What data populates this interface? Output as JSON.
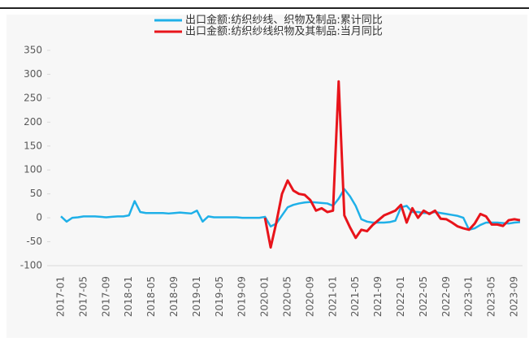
{
  "chart_data": {
    "type": "line",
    "categories": [
      "2017-01",
      null,
      null,
      null,
      "2017-05",
      null,
      null,
      null,
      "2017-09",
      null,
      null,
      null,
      "2018-01",
      null,
      null,
      null,
      "2018-05",
      null,
      null,
      null,
      "2018-09",
      null,
      null,
      null,
      "2019-01",
      null,
      null,
      null,
      "2019-05",
      null,
      null,
      null,
      "2019-09",
      null,
      null,
      null,
      "2020-01",
      null,
      null,
      null,
      "2020-05",
      null,
      null,
      null,
      "2020-09",
      null,
      null,
      null,
      "2021-01",
      null,
      null,
      null,
      "2021-05",
      null,
      null,
      null,
      "2021-09",
      null,
      null,
      null,
      "2022-01",
      null,
      null,
      null,
      "2022-05",
      null,
      null,
      null,
      "2022-09",
      null,
      null,
      null,
      "2023-01",
      null,
      null,
      null,
      "2023-05",
      null,
      null,
      null,
      "2023-09",
      null
    ],
    "series": [
      {
        "name": "出口金额:纺织纱线、织物及制品:累计同比",
        "color": "#1fb0e8",
        "values": [
          3,
          -8,
          0,
          1,
          3,
          3,
          3,
          2,
          1,
          2,
          3,
          3,
          5,
          35,
          12,
          10,
          10,
          10,
          10,
          9,
          10,
          11,
          10,
          9,
          15,
          -8,
          3,
          1,
          1,
          1,
          1,
          1,
          0,
          0,
          0,
          0,
          2,
          -18,
          -12,
          5,
          22,
          27,
          30,
          32,
          33,
          32,
          31,
          30,
          25,
          40,
          60,
          45,
          25,
          -3,
          -8,
          -10,
          -10,
          -10,
          -9,
          -6,
          22,
          25,
          12,
          12,
          10,
          10,
          12,
          10,
          8,
          6,
          4,
          0,
          -25,
          -22,
          -15,
          -10,
          -10,
          -10,
          -11,
          -12,
          -10,
          -9
        ]
      },
      {
        "name": "出口金额:纺织纱线织物及其制品:当月同比",
        "color": "#e8141b",
        "values": [
          null,
          null,
          null,
          null,
          null,
          null,
          null,
          null,
          null,
          null,
          null,
          null,
          null,
          null,
          null,
          null,
          null,
          null,
          null,
          null,
          null,
          null,
          null,
          null,
          null,
          null,
          null,
          null,
          null,
          null,
          null,
          null,
          null,
          null,
          null,
          null,
          0,
          -62,
          -10,
          50,
          78,
          57,
          50,
          48,
          37,
          15,
          20,
          12,
          15,
          285,
          5,
          -20,
          -42,
          -25,
          -28,
          -15,
          -5,
          5,
          10,
          15,
          27,
          -10,
          20,
          0,
          15,
          8,
          15,
          -2,
          -3,
          -10,
          -18,
          -22,
          -25,
          -12,
          8,
          3,
          -14,
          -14,
          -17,
          -5,
          -3,
          -5
        ]
      }
    ],
    "ylim": [
      -100,
      350
    ],
    "yticks": [
      -100,
      -50,
      0,
      50,
      100,
      150,
      200,
      250,
      300,
      350
    ],
    "grid": false
  }
}
